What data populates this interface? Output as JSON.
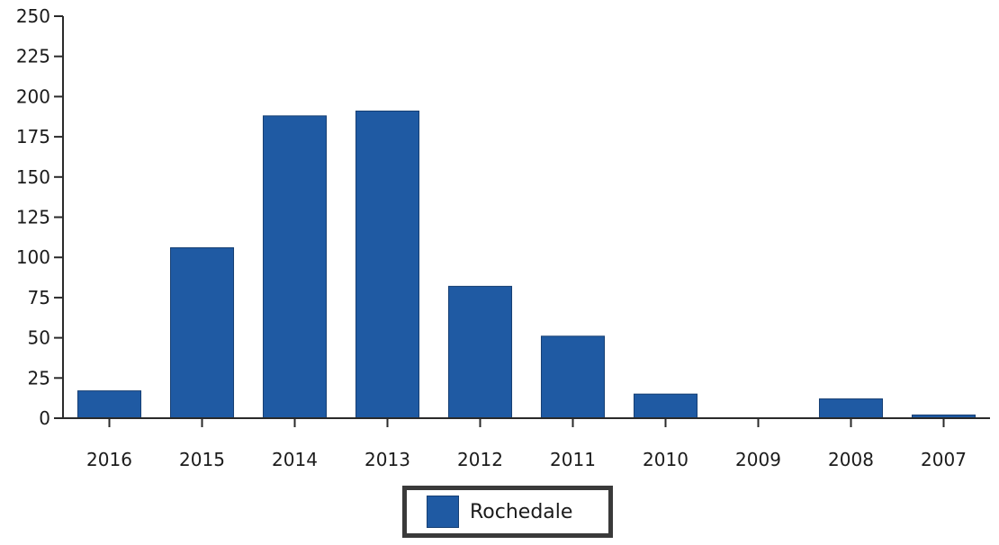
{
  "chart_data": {
    "type": "bar",
    "categories": [
      "2016",
      "2015",
      "2014",
      "2013",
      "2012",
      "2011",
      "2010",
      "2009",
      "2008",
      "2007"
    ],
    "series": [
      {
        "name": "Rochedale",
        "values": [
          17,
          106,
          188,
          191,
          82,
          51,
          15,
          0,
          12,
          2
        ],
        "color": "#1f5aa3"
      }
    ],
    "yticks": [
      "0",
      "25",
      "50",
      "75",
      "100",
      "125",
      "150",
      "175",
      "200",
      "225",
      "250"
    ],
    "ylim": [
      0,
      250
    ],
    "title": "",
    "xlabel": "",
    "ylabel": "",
    "legend": {
      "label": "Rochedale",
      "position": "bottom-center"
    },
    "grid": false
  }
}
